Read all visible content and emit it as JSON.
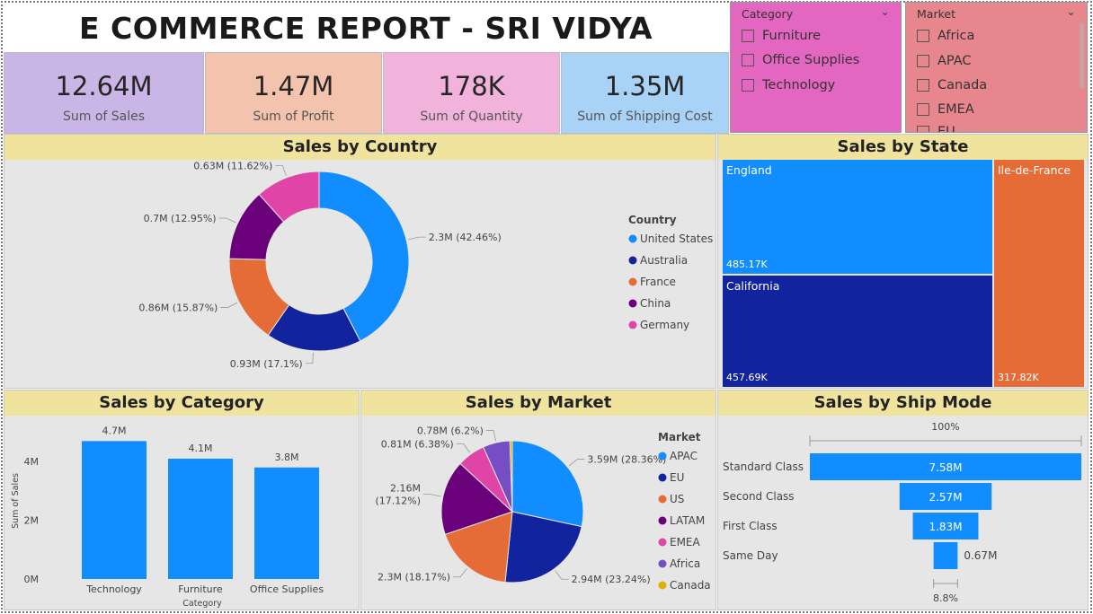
{
  "title": "E COMMERCE REPORT - SRI VIDYA",
  "kpis": [
    {
      "value": "12.64M",
      "label": "Sum of Sales",
      "color": "#c9b6e6"
    },
    {
      "value": "1.47M",
      "label": "Sum of Profit",
      "color": "#f4c3ad"
    },
    {
      "value": "178K",
      "label": "Sum of Quantity",
      "color": "#f1b3dc"
    },
    {
      "value": "1.35M",
      "label": "Sum of Shipping Cost",
      "color": "#a9d2f7"
    }
  ],
  "category_slicer": {
    "header": "Category",
    "items": [
      "Furniture",
      "Office Supplies",
      "Technology"
    ],
    "color": "#e366c0"
  },
  "market_slicer": {
    "header": "Market",
    "items": [
      "Africa",
      "APAC",
      "Canada",
      "EMEA",
      "EU"
    ],
    "color": "#e8868e"
  },
  "chart_titles": {
    "country": "Sales by Country",
    "state": "Sales by State",
    "category": "Sales by Category",
    "market": "Sales by Market",
    "shipmode": "Sales by Ship Mode"
  },
  "chart_data": [
    {
      "type": "pie",
      "title": "Sales by Country",
      "style": "donut",
      "legend_title": "Country",
      "legend_position": "right",
      "slices": [
        {
          "name": "United States",
          "value": 2.3,
          "label": "2.3M (42.46%)",
          "color": "#118dff"
        },
        {
          "name": "Australia",
          "value": 0.93,
          "label": "0.93M (17.1%)",
          "color": "#12239e"
        },
        {
          "name": "France",
          "value": 0.86,
          "label": "0.86M (15.87%)",
          "color": "#e66c37"
        },
        {
          "name": "China",
          "value": 0.7,
          "label": "0.7M (12.95%)",
          "color": "#6b007b"
        },
        {
          "name": "Germany",
          "value": 0.63,
          "label": "0.63M (11.62%)",
          "color": "#e044a7"
        }
      ]
    },
    {
      "type": "treemap",
      "title": "Sales by State",
      "items": [
        {
          "name": "England",
          "value": 485.17,
          "label": "485.17K",
          "color": "#118dff"
        },
        {
          "name": "California",
          "value": 457.69,
          "label": "457.69K",
          "color": "#12239e"
        },
        {
          "name": "Ile-de-France",
          "value": 317.82,
          "label": "317.82K",
          "color": "#e66c37"
        }
      ]
    },
    {
      "type": "bar",
      "title": "Sales by Category",
      "categories": [
        "Technology",
        "Furniture",
        "Office Supplies"
      ],
      "values": [
        4.7,
        4.1,
        3.8
      ],
      "value_labels": [
        "4.7M",
        "4.1M",
        "3.8M"
      ],
      "xlabel": "Category",
      "ylabel": "Sum of Sales",
      "yticks": [
        "0M",
        "2M",
        "4M"
      ],
      "ylim": [
        0,
        5.2
      ],
      "color": "#118dff"
    },
    {
      "type": "pie",
      "title": "Sales by Market",
      "legend_title": "Market",
      "legend_position": "right",
      "slices": [
        {
          "name": "APAC",
          "value": 3.59,
          "label": "3.59M (28.36%)",
          "color": "#118dff"
        },
        {
          "name": "EU",
          "value": 2.94,
          "label": "2.94M (23.24%)",
          "color": "#12239e"
        },
        {
          "name": "US",
          "value": 2.3,
          "label": "2.3M (18.17%)",
          "color": "#e66c37"
        },
        {
          "name": "LATAM",
          "value": 2.16,
          "label": "2.16M (17.12%)",
          "color": "#6b007b"
        },
        {
          "name": "EMEA",
          "value": 0.81,
          "label": "0.81M (6.38%)",
          "color": "#e044a7"
        },
        {
          "name": "Africa",
          "value": 0.78,
          "label": "0.78M (6.2%)",
          "color": "#744ec2"
        },
        {
          "name": "Canada",
          "value": 0.07,
          "label": "",
          "color": "#d9b300"
        }
      ]
    },
    {
      "type": "funnel",
      "title": "Sales by Ship Mode",
      "top_percent": "100%",
      "bottom_percent": "8.8%",
      "stages": [
        {
          "name": "Standard Class",
          "value": 7.58,
          "label": "7.58M"
        },
        {
          "name": "Second Class",
          "value": 2.57,
          "label": "2.57M"
        },
        {
          "name": "First Class",
          "value": 1.83,
          "label": "1.83M"
        },
        {
          "name": "Same Day",
          "value": 0.67,
          "label": "0.67M"
        }
      ],
      "color": "#118dff"
    }
  ]
}
